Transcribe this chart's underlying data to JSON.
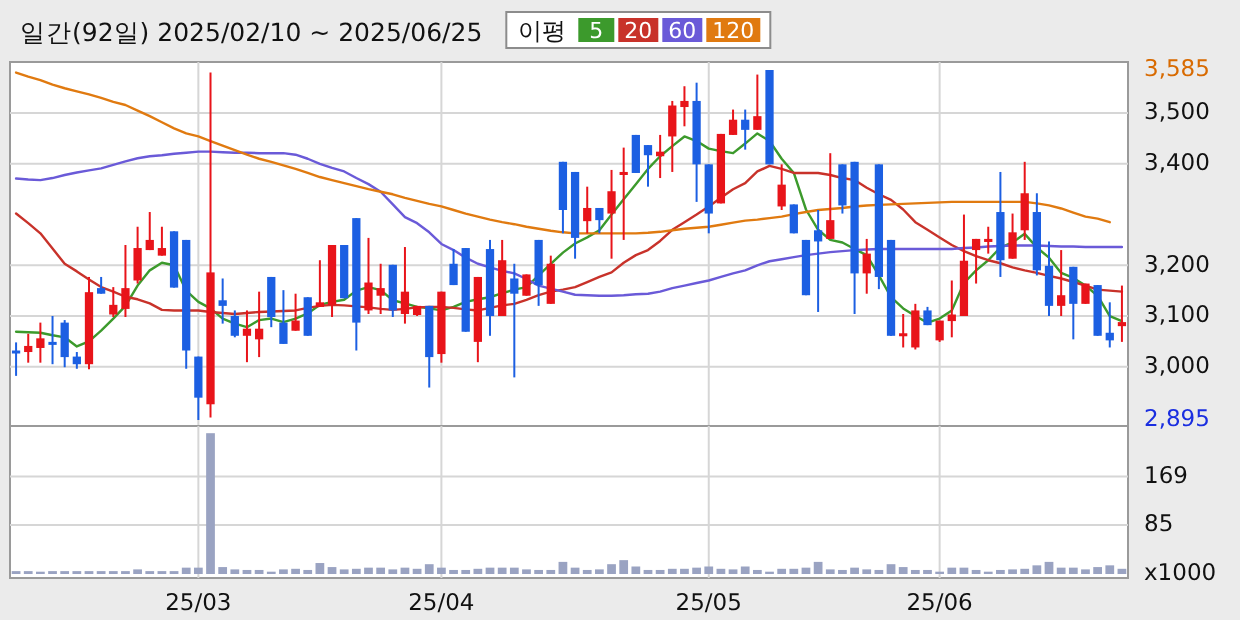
{
  "chart_data": [
    {
      "type": "candlestick",
      "title": "일간(92일) 2025/02/10 ~ 2025/06/25",
      "legend_title": "이평",
      "legend": "top",
      "grid": true,
      "categories": [
        null,
        null,
        null,
        null,
        null,
        null,
        null,
        null,
        null,
        null,
        null,
        null,
        null,
        null,
        null,
        null,
        null,
        null,
        null,
        null,
        null,
        null,
        null,
        null,
        null,
        null,
        null,
        null,
        null,
        null,
        null,
        null,
        null,
        null,
        null,
        null,
        null,
        null,
        null,
        null,
        null,
        null,
        null,
        null,
        null,
        null,
        null,
        null,
        null,
        null,
        null,
        null,
        null,
        null,
        null,
        null,
        null,
        null,
        null,
        null,
        null,
        null,
        null,
        null,
        null,
        null,
        null,
        null,
        null,
        null,
        null,
        null,
        null,
        null,
        null,
        null,
        null,
        null,
        null,
        null,
        null,
        null,
        null,
        null,
        null,
        null,
        null,
        null,
        null,
        null,
        null,
        null
      ],
      "ylim": [
        2895,
        3585
      ],
      "yticks": [
        {
          "value": 2895,
          "label": "2,895"
        },
        {
          "value": 3000,
          "label": "3,000"
        },
        {
          "value": 3100,
          "label": "3,100"
        },
        {
          "value": 3200,
          "label": "3,200"
        },
        {
          "value": 3400,
          "label": "3,400"
        },
        {
          "value": 3500,
          "label": "3,500"
        },
        {
          "value": 3585,
          "label": "3,585"
        }
      ],
      "ohlc": [
        [
          3032,
          3048,
          2982,
          3028
        ],
        [
          3029,
          3065,
          3008,
          3041
        ],
        [
          3037,
          3087,
          3008,
          3056
        ],
        [
          3049,
          3100,
          3005,
          3045
        ],
        [
          3087,
          3092,
          2999,
          3019
        ],
        [
          3020,
          3029,
          2996,
          3005
        ],
        [
          3005,
          3177,
          2995,
          3147
        ],
        [
          3155,
          3177,
          3144,
          3144
        ],
        [
          3103,
          3157,
          3098,
          3122
        ],
        [
          3114,
          3240,
          3098,
          3155
        ],
        [
          3170,
          3276,
          3164,
          3234
        ],
        [
          3230,
          3305,
          3230,
          3250
        ],
        [
          3219,
          3276,
          3219,
          3234
        ],
        [
          3267,
          3267,
          3156,
          3156
        ],
        [
          3250,
          3250,
          2996,
          3032
        ],
        [
          3020,
          3020,
          2895,
          2939
        ],
        [
          2926,
          3580,
          2900,
          3186
        ],
        [
          3131,
          3174,
          3085,
          3120
        ],
        [
          3100,
          3111,
          3058,
          3061
        ],
        [
          3061,
          3111,
          3009,
          3075
        ],
        [
          3054,
          3148,
          3019,
          3075
        ],
        [
          3177,
          3177,
          3078,
          3098
        ],
        [
          3087,
          3151,
          3045,
          3045
        ],
        [
          3071,
          3144,
          3071,
          3091
        ],
        [
          3137,
          3137,
          3061,
          3061
        ],
        [
          3118,
          3210,
          3118,
          3127
        ],
        [
          3122,
          3240,
          3098,
          3240
        ],
        [
          3240,
          3240,
          3135,
          3135
        ],
        [
          3293,
          3293,
          3032,
          3087
        ],
        [
          3111,
          3254,
          3104,
          3166
        ],
        [
          3140,
          3203,
          3104,
          3155
        ],
        [
          3201,
          3201,
          3098,
          3111
        ],
        [
          3104,
          3236,
          3085,
          3148
        ],
        [
          3102,
          3120,
          3100,
          3120
        ],
        [
          3120,
          3120,
          2959,
          3019
        ],
        [
          3025,
          3148,
          3008,
          3148
        ],
        [
          3203,
          3232,
          3161,
          3161
        ],
        [
          3234,
          3234,
          3069,
          3069
        ],
        [
          3049,
          3177,
          3009,
          3177
        ],
        [
          3232,
          3250,
          3061,
          3100
        ],
        [
          3100,
          3250,
          3100,
          3210
        ],
        [
          3174,
          3203,
          2979,
          3144
        ],
        [
          3140,
          3182,
          3140,
          3182
        ],
        [
          3250,
          3250,
          3120,
          3161
        ],
        [
          3124,
          3219,
          3124,
          3203
        ],
        [
          3404,
          3404,
          3263,
          3309
        ],
        [
          3384,
          3384,
          3213,
          3254
        ],
        [
          3287,
          3355,
          3263,
          3313
        ],
        [
          3313,
          3313,
          3263,
          3289
        ],
        [
          3302,
          3388,
          3213,
          3346
        ],
        [
          3378,
          3432,
          3250,
          3384
        ],
        [
          3457,
          3457,
          3382,
          3382
        ],
        [
          3437,
          3437,
          3355,
          3417
        ],
        [
          3415,
          3457,
          3372,
          3424
        ],
        [
          3454,
          3524,
          3384,
          3515
        ],
        [
          3512,
          3553,
          3474,
          3524
        ],
        [
          3524,
          3560,
          3325,
          3399
        ],
        [
          3399,
          3399,
          3263,
          3302
        ],
        [
          3322,
          3459,
          3322,
          3459
        ],
        [
          3457,
          3507,
          3457,
          3487
        ],
        [
          3487,
          3507,
          3428,
          3467
        ],
        [
          3467,
          3576,
          3467,
          3494
        ],
        [
          3585,
          3585,
          3399,
          3399
        ],
        [
          3316,
          3399,
          3309,
          3359
        ],
        [
          3320,
          3320,
          3263,
          3263
        ],
        [
          3250,
          3250,
          3141,
          3141
        ],
        [
          3269,
          3309,
          3108,
          3247
        ],
        [
          3252,
          3421,
          3252,
          3289
        ],
        [
          3399,
          3399,
          3302,
          3318
        ],
        [
          3404,
          3404,
          3104,
          3184
        ],
        [
          3184,
          3252,
          3144,
          3223
        ],
        [
          3399,
          3399,
          3153,
          3177
        ],
        [
          3250,
          3250,
          3061,
          3061
        ],
        [
          3063,
          3104,
          3038,
          3066
        ],
        [
          3038,
          3124,
          3034,
          3111
        ],
        [
          3111,
          3118,
          3082,
          3082
        ],
        [
          3052,
          3091,
          3049,
          3091
        ],
        [
          3090,
          3170,
          3058,
          3103
        ],
        [
          3100,
          3300,
          3100,
          3209
        ],
        [
          3230,
          3252,
          3164,
          3252
        ],
        [
          3246,
          3276,
          3223,
          3252
        ],
        [
          3305,
          3384,
          3177,
          3210
        ],
        [
          3213,
          3302,
          3213,
          3265
        ],
        [
          3269,
          3404,
          3250,
          3342
        ],
        [
          3305,
          3342,
          3180,
          3190
        ],
        [
          3199,
          3247,
          3100,
          3120
        ],
        [
          3120,
          3230,
          3100,
          3141
        ],
        [
          3197,
          3197,
          3054,
          3124
        ],
        [
          3124,
          3164,
          3124,
          3164
        ],
        [
          3161,
          3161,
          3061,
          3061
        ],
        [
          3067,
          3127,
          3038,
          3052
        ],
        [
          3080,
          3160,
          3049,
          3088
        ]
      ],
      "series": [
        {
          "name": "5",
          "type": "line",
          "color": "#3c9a2c",
          "values": [
            3069,
            3068,
            3067,
            3062,
            3058,
            3040,
            3050,
            3071,
            3095,
            3120,
            3160,
            3190,
            3205,
            3200,
            3150,
            3128,
            3115,
            3095,
            3085,
            3078,
            3092,
            3095,
            3088,
            3095,
            3105,
            3122,
            3128,
            3132,
            3150,
            3157,
            3151,
            3131,
            3125,
            3118,
            3115,
            3111,
            3118,
            3128,
            3133,
            3137,
            3145,
            3152,
            3157,
            3180,
            3203,
            3225,
            3243,
            3255,
            3269,
            3300,
            3330,
            3360,
            3390,
            3415,
            3435,
            3454,
            3445,
            3430,
            3425,
            3421,
            3440,
            3460,
            3445,
            3410,
            3382,
            3310,
            3270,
            3250,
            3245,
            3232,
            3220,
            3180,
            3137,
            3115,
            3100,
            3087,
            3095,
            3111,
            3165,
            3190,
            3210,
            3235,
            3245,
            3262,
            3235,
            3215,
            3185,
            3175,
            3160,
            3140,
            3100,
            3090
          ]
        },
        {
          "name": "20",
          "type": "line",
          "color": "#c8322a",
          "values": [
            3302,
            3283,
            3263,
            3233,
            3203,
            3188,
            3172,
            3157,
            3148,
            3138,
            3133,
            3125,
            3112,
            3111,
            3111,
            3111,
            3108,
            3106,
            3104,
            3106,
            3108,
            3109,
            3110,
            3111,
            3116,
            3120,
            3122,
            3121,
            3119,
            3117,
            3114,
            3112,
            3114,
            3117,
            3118,
            3118,
            3116,
            3113,
            3111,
            3116,
            3121,
            3124,
            3132,
            3141,
            3148,
            3152,
            3157,
            3167,
            3177,
            3186,
            3205,
            3220,
            3230,
            3248,
            3270,
            3285,
            3300,
            3316,
            3333,
            3350,
            3362,
            3385,
            3396,
            3390,
            3382,
            3382,
            3382,
            3378,
            3372,
            3368,
            3353,
            3340,
            3329,
            3310,
            3285,
            3270,
            3255,
            3240,
            3228,
            3218,
            3210,
            3204,
            3196,
            3190,
            3185,
            3179,
            3174,
            3167,
            3160,
            3152,
            3150,
            3148
          ]
        },
        {
          "name": "60",
          "type": "line",
          "color": "#6a5ad8",
          "values": [
            3371,
            3369,
            3368,
            3372,
            3378,
            3383,
            3387,
            3391,
            3398,
            3405,
            3411,
            3415,
            3417,
            3420,
            3422,
            3424,
            3424,
            3423,
            3422,
            3422,
            3421,
            3421,
            3421,
            3418,
            3410,
            3400,
            3392,
            3385,
            3372,
            3360,
            3345,
            3320,
            3295,
            3283,
            3265,
            3242,
            3230,
            3215,
            3203,
            3196,
            3189,
            3184,
            3173,
            3160,
            3154,
            3148,
            3142,
            3141,
            3140,
            3140,
            3141,
            3143,
            3144,
            3148,
            3155,
            3160,
            3165,
            3170,
            3177,
            3184,
            3190,
            3200,
            3208,
            3212,
            3216,
            3220,
            3223,
            3226,
            3228,
            3230,
            3231,
            3232,
            3232,
            3232,
            3232,
            3232,
            3232,
            3232,
            3234,
            3235,
            3237,
            3238,
            3239,
            3239,
            3239,
            3238,
            3237,
            3237,
            3236,
            3236,
            3236,
            3236
          ]
        },
        {
          "name": "120",
          "type": "line",
          "color": "#e07a10",
          "values": [
            3580,
            3572,
            3565,
            3556,
            3549,
            3543,
            3537,
            3530,
            3522,
            3516,
            3505,
            3494,
            3482,
            3470,
            3460,
            3454,
            3445,
            3436,
            3427,
            3418,
            3410,
            3404,
            3397,
            3390,
            3382,
            3374,
            3368,
            3362,
            3356,
            3350,
            3345,
            3340,
            3333,
            3327,
            3321,
            3316,
            3309,
            3302,
            3296,
            3290,
            3285,
            3281,
            3276,
            3272,
            3268,
            3265,
            3263,
            3263,
            3263,
            3263,
            3263,
            3263,
            3264,
            3266,
            3269,
            3272,
            3274,
            3276,
            3280,
            3284,
            3288,
            3290,
            3293,
            3296,
            3301,
            3305,
            3309,
            3311,
            3313,
            3316,
            3318,
            3319,
            3320,
            3321,
            3322,
            3323,
            3324,
            3325,
            3325,
            3325,
            3325,
            3325,
            3325,
            3325,
            3322,
            3318,
            3312,
            3304,
            3296,
            3292,
            3285,
            null
          ]
        }
      ]
    },
    {
      "type": "bar",
      "grid": true,
      "color": "#9aa3c2",
      "categories": [
        null,
        null,
        null,
        null,
        null,
        null,
        null,
        null,
        null,
        null,
        null,
        null,
        null,
        null,
        null,
        "25/03",
        null,
        null,
        null,
        null,
        null,
        null,
        null,
        null,
        null,
        null,
        null,
        null,
        null,
        null,
        null,
        null,
        null,
        null,
        null,
        "25/04",
        null,
        null,
        null,
        null,
        null,
        null,
        null,
        null,
        null,
        null,
        null,
        null,
        null,
        null,
        null,
        null,
        null,
        null,
        null,
        null,
        null,
        "25/05",
        null,
        null,
        null,
        null,
        null,
        null,
        null,
        null,
        null,
        null,
        null,
        null,
        null,
        null,
        null,
        null,
        null,
        null,
        "25/06",
        null,
        null,
        null,
        null,
        null,
        null,
        null,
        null,
        null,
        null,
        null,
        null,
        null,
        null,
        null
      ],
      "ylim": [
        0,
        253
      ],
      "yticks": [
        {
          "value": 0,
          "label": "x1000"
        },
        85,
        169
      ],
      "values": [
        5,
        5,
        4,
        5,
        5,
        5,
        5,
        5,
        5,
        5,
        8,
        5,
        5,
        5,
        11,
        11,
        244,
        12,
        8,
        7,
        7,
        4,
        8,
        9,
        7,
        19,
        12,
        8,
        9,
        11,
        11,
        8,
        11,
        9,
        17,
        11,
        7,
        7,
        9,
        11,
        11,
        11,
        8,
        7,
        7,
        21,
        11,
        7,
        8,
        17,
        24,
        13,
        7,
        7,
        9,
        9,
        11,
        13,
        9,
        8,
        13,
        7,
        4,
        9,
        9,
        11,
        21,
        8,
        7,
        11,
        8,
        7,
        17,
        12,
        7,
        7,
        4,
        11,
        11,
        7,
        4,
        7,
        8,
        9,
        15,
        21,
        11,
        11,
        8,
        12,
        15,
        9
      ]
    }
  ]
}
